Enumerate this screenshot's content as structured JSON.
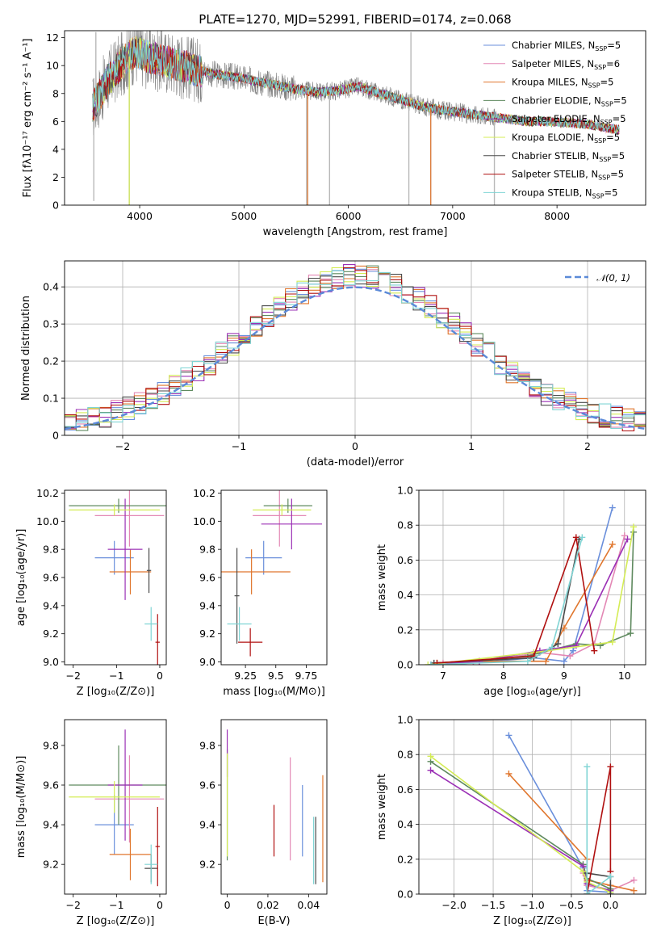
{
  "colors": {
    "Chabrier MILES": "#6a8fdb",
    "Salpeter MILES": "#e388b5",
    "Kroupa MILES": "#e0762d",
    "Chabrier ELODIE": "#5f8a5f",
    "Salpeter ELODIE": "#9b30b5",
    "Kroupa ELODIE": "#d4ec55",
    "Chabrier STELIB": "#4a4a4a",
    "Salpeter STELIB": "#b01010",
    "Kroupa STELIB": "#7fd4d4",
    "data": "#808080",
    "normal": "#5b8ad8",
    "grid": "#b0b0b0"
  },
  "chart_data": [
    {
      "id": "spectrum",
      "type": "line",
      "title": "PLATE=1270, MJD=52991, FIBERID=0174, z=0.068",
      "xlabel": "wavelength [Angstrom, rest frame]",
      "ylabel": "Flux [fλ10⁻¹⁷ erg cm⁻² s⁻¹ A⁻¹]",
      "xlim": [
        3280,
        8850
      ],
      "ylim": [
        0,
        12.5
      ],
      "xticks": [
        4000,
        5000,
        6000,
        7000,
        8000
      ],
      "yticks": [
        0,
        2,
        4,
        6,
        8,
        10,
        12
      ],
      "grid": false,
      "legend_position": "top-right",
      "legend": [
        {
          "name": "Chabrier MILES",
          "label": "Chabrier MILES, N",
          "sub": "SSP",
          "suffix": "=5"
        },
        {
          "name": "Salpeter MILES",
          "label": "Salpeter MILES, N",
          "sub": "SSP",
          "suffix": "=6"
        },
        {
          "name": "Kroupa MILES",
          "label": "Kroupa MILES, N",
          "sub": "SSP",
          "suffix": "=5"
        },
        {
          "name": "Chabrier ELODIE",
          "label": "Chabrier ELODIE, N",
          "sub": "SSP",
          "suffix": "=5"
        },
        {
          "name": "Salpeter ELODIE",
          "label": "Salpeter ELODIE, N",
          "sub": "SSP",
          "suffix": "=5"
        },
        {
          "name": "Kroupa ELODIE",
          "label": "Kroupa ELODIE, N",
          "sub": "SSP",
          "suffix": "=5"
        },
        {
          "name": "Chabrier STELIB",
          "label": "Chabrier STELIB, N",
          "sub": "SSP",
          "suffix": "=5"
        },
        {
          "name": "Salpeter STELIB",
          "label": "Salpeter STELIB, N",
          "sub": "SSP",
          "suffix": "=5"
        },
        {
          "name": "Kroupa STELIB",
          "label": "Kroupa STELIB, N",
          "sub": "SSP",
          "suffix": "=5"
        }
      ],
      "continuum": [
        [
          3550,
          7.0
        ],
        [
          3700,
          9.0
        ],
        [
          3850,
          10.3
        ],
        [
          3950,
          11.0
        ],
        [
          4100,
          10.6
        ],
        [
          4300,
          10.2
        ],
        [
          4500,
          9.8
        ],
        [
          4700,
          9.4
        ],
        [
          4900,
          9.2
        ],
        [
          5100,
          8.9
        ],
        [
          5300,
          8.6
        ],
        [
          5500,
          8.3
        ],
        [
          5700,
          8.1
        ],
        [
          5900,
          8.2
        ],
        [
          6100,
          8.5
        ],
        [
          6300,
          8.0
        ],
        [
          6500,
          7.6
        ],
        [
          6700,
          7.1
        ],
        [
          6900,
          6.8
        ],
        [
          7100,
          6.6
        ],
        [
          7300,
          6.4
        ],
        [
          7500,
          6.2
        ],
        [
          7700,
          6.0
        ],
        [
          7900,
          6.0
        ],
        [
          8100,
          5.9
        ],
        [
          8300,
          5.8
        ],
        [
          8500,
          5.5
        ],
        [
          8600,
          5.4
        ]
      ],
      "data_range": [
        3550,
        7420
      ],
      "model_range": [
        3550,
        8600
      ],
      "spikes": [
        [
          3560,
          0.3
        ],
        [
          3580,
          12.4
        ],
        [
          3900,
          0.0
        ],
        [
          4400,
          12.0
        ],
        [
          5600,
          0.0
        ],
        [
          5820,
          0.0
        ],
        [
          6580,
          0.0
        ],
        [
          6600,
          12.4
        ],
        [
          6790,
          0.0
        ],
        [
          7400,
          0.0
        ]
      ]
    },
    {
      "id": "residuals",
      "type": "histogram",
      "xlabel": "(data-model)/error",
      "ylabel": "Normed distribution",
      "xlim": [
        -2.5,
        2.5
      ],
      "ylim": [
        0,
        0.47
      ],
      "xticks": [
        -2,
        -1,
        0,
        1,
        2
      ],
      "yticks": [
        0,
        0.1,
        0.2,
        0.3,
        0.4
      ],
      "grid": true,
      "legend_position": "top-right",
      "legend": {
        "name": "normal",
        "label": "𝒩(0, 1)"
      },
      "bin_width": 0.1,
      "bin_start": -2.5
    },
    {
      "id": "age-vs-Z",
      "type": "errorbar",
      "xlabel": "Z [log₁₀(Z/Z⊙)]",
      "ylabel": "age  [log₁₀(age/yr)]",
      "xlim": [
        -2.2,
        0.15
      ],
      "ylim": [
        8.98,
        10.22
      ],
      "xticks": [
        -2,
        -1,
        0
      ],
      "yticks": [
        9.0,
        9.2,
        9.4,
        9.6,
        9.8,
        10.0,
        10.2
      ],
      "grid": false,
      "points": [
        {
          "series": "Chabrier MILES",
          "x": -1.05,
          "xerr": 0.45,
          "y": 9.74,
          "yerr": 0.12
        },
        {
          "series": "Salpeter MILES",
          "x": -0.7,
          "xerr": 0.8,
          "y": 10.04,
          "yerr": 0.22
        },
        {
          "series": "Kroupa MILES",
          "x": -0.68,
          "xerr": 0.48,
          "y": 9.64,
          "yerr": 0.16
        },
        {
          "series": "Chabrier ELODIE",
          "x": -0.95,
          "xerr": 1.15,
          "y": 10.11,
          "yerr": 0.05
        },
        {
          "series": "Salpeter ELODIE",
          "x": -0.8,
          "xerr": 0.4,
          "y": 9.8,
          "yerr": 0.36
        },
        {
          "series": "Kroupa ELODIE",
          "x": -1.05,
          "xerr": 1.05,
          "y": 10.08,
          "yerr": 0.04
        },
        {
          "series": "Chabrier STELIB",
          "x": -0.25,
          "xerr": 0.05,
          "y": 9.65,
          "yerr": 0.16
        },
        {
          "series": "Salpeter STELIB",
          "x": -0.05,
          "xerr": 0.05,
          "y": 9.14,
          "yerr": 0.2
        },
        {
          "series": "Kroupa STELIB",
          "x": -0.2,
          "xerr": 0.15,
          "y": 9.27,
          "yerr": 0.12
        }
      ]
    },
    {
      "id": "age-vs-mass",
      "type": "errorbar",
      "xlabel": "mass [log₁₀(M/M⊙)]",
      "ylabel": "",
      "xlim": [
        9.05,
        9.92
      ],
      "ylim": [
        8.98,
        10.22
      ],
      "xticks": [
        9.25,
        9.5,
        9.75
      ],
      "yticks": [
        9.0,
        9.2,
        9.4,
        9.6,
        9.8,
        10.0,
        10.2
      ],
      "grid": false,
      "points": [
        {
          "series": "Chabrier MILES",
          "x": 9.4,
          "xerr": 0.15,
          "y": 9.74,
          "yerr": 0.12
        },
        {
          "series": "Salpeter MILES",
          "x": 9.53,
          "xerr": 0.22,
          "y": 10.04,
          "yerr": 0.22
        },
        {
          "series": "Kroupa MILES",
          "x": 9.3,
          "xerr": 0.32,
          "y": 9.64,
          "yerr": 0.16
        },
        {
          "series": "Chabrier ELODIE",
          "x": 9.6,
          "xerr": 0.2,
          "y": 10.11,
          "yerr": 0.05
        },
        {
          "series": "Salpeter ELODIE",
          "x": 9.63,
          "xerr": 0.25,
          "y": 9.98,
          "yerr": 0.18
        },
        {
          "series": "Kroupa ELODIE",
          "x": 9.55,
          "xerr": 0.24,
          "y": 10.08,
          "yerr": 0.04
        },
        {
          "series": "Chabrier STELIB",
          "x": 9.18,
          "xerr": 0.02,
          "y": 9.47,
          "yerr": 0.34
        },
        {
          "series": "Salpeter STELIB",
          "x": 9.29,
          "xerr": 0.1,
          "y": 9.14,
          "yerr": 0.1
        },
        {
          "series": "Kroupa STELIB",
          "x": 9.2,
          "xerr": 0.1,
          "y": 9.27,
          "yerr": 0.12
        }
      ]
    },
    {
      "id": "massweight-vs-age",
      "type": "line",
      "xlabel": "age  [log₁₀(age/yr)]",
      "ylabel": "mass weight",
      "xlim": [
        6.6,
        10.35
      ],
      "ylim": [
        0,
        1
      ],
      "xticks": [
        7,
        8,
        9,
        10
      ],
      "yticks": [
        0.0,
        0.2,
        0.4,
        0.6,
        0.8,
        1.0
      ],
      "grid": true,
      "series": [
        {
          "name": "Chabrier MILES",
          "points": [
            [
              7.0,
              0.0
            ],
            [
              7.5,
              0.01
            ],
            [
              8.5,
              0.04
            ],
            [
              9.0,
              0.02
            ],
            [
              9.15,
              0.08
            ],
            [
              9.8,
              0.9
            ]
          ]
        },
        {
          "name": "Salpeter MILES",
          "points": [
            [
              7.0,
              0.01
            ],
            [
              7.5,
              0.01
            ],
            [
              8.6,
              0.07
            ],
            [
              9.1,
              0.05
            ],
            [
              9.5,
              0.12
            ],
            [
              10.0,
              0.74
            ]
          ]
        },
        {
          "name": "Kroupa MILES",
          "points": [
            [
              6.9,
              0.01
            ],
            [
              7.6,
              0.02
            ],
            [
              8.7,
              0.02
            ],
            [
              9.0,
              0.21
            ],
            [
              9.8,
              0.69
            ]
          ]
        },
        {
          "name": "Chabrier ELODIE",
          "points": [
            [
              6.8,
              0.0
            ],
            [
              8.4,
              0.05
            ],
            [
              9.2,
              0.12
            ],
            [
              9.6,
              0.11
            ],
            [
              10.1,
              0.18
            ],
            [
              10.15,
              0.76
            ]
          ]
        },
        {
          "name": "Salpeter ELODIE",
          "points": [
            [
              6.8,
              0.0
            ],
            [
              7.6,
              0.02
            ],
            [
              8.6,
              0.08
            ],
            [
              9.2,
              0.11
            ],
            [
              10.05,
              0.72
            ]
          ]
        },
        {
          "name": "Kroupa ELODIE",
          "points": [
            [
              6.75,
              0.0
            ],
            [
              8.5,
              0.07
            ],
            [
              9.8,
              0.13
            ],
            [
              10.15,
              0.79
            ]
          ]
        },
        {
          "name": "Chabrier STELIB",
          "points": [
            [
              6.85,
              0.01
            ],
            [
              8.5,
              0.04
            ],
            [
              8.9,
              0.12
            ],
            [
              9.25,
              0.72
            ]
          ]
        },
        {
          "name": "Salpeter STELIB",
          "points": [
            [
              6.9,
              0.01
            ],
            [
              8.5,
              0.05
            ],
            [
              9.2,
              0.73
            ],
            [
              9.5,
              0.08
            ]
          ]
        },
        {
          "name": "Kroupa STELIB",
          "points": [
            [
              6.8,
              0.0
            ],
            [
              8.4,
              0.02
            ],
            [
              8.8,
              0.1
            ],
            [
              9.3,
              0.73
            ]
          ]
        }
      ]
    },
    {
      "id": "mass-vs-Z",
      "type": "errorbar",
      "xlabel": "Z [log₁₀(Z/Z⊙)]",
      "ylabel": "mass [log₁₀(M/M⊙)]",
      "xlim": [
        -2.2,
        0.15
      ],
      "ylim": [
        9.05,
        9.93
      ],
      "xticks": [
        -2,
        -1,
        0
      ],
      "yticks": [
        9.2,
        9.4,
        9.6,
        9.8
      ],
      "grid": false,
      "points": [
        {
          "series": "Chabrier MILES",
          "x": -1.05,
          "xerr": 0.45,
          "y": 9.4,
          "yerr": 0.15
        },
        {
          "series": "Salpeter MILES",
          "x": -0.7,
          "xerr": 0.8,
          "y": 9.53,
          "yerr": 0.22
        },
        {
          "series": "Kroupa MILES",
          "x": -0.68,
          "xerr": 0.48,
          "y": 9.25,
          "yerr": 0.13
        },
        {
          "series": "Chabrier ELODIE",
          "x": -0.95,
          "xerr": 1.15,
          "y": 9.6,
          "yerr": 0.2
        },
        {
          "series": "Salpeter ELODIE",
          "x": -0.8,
          "xerr": 0.4,
          "y": 9.6,
          "yerr": 0.28
        },
        {
          "series": "Kroupa ELODIE",
          "x": -1.05,
          "xerr": 1.05,
          "y": 9.54,
          "yerr": 0.08
        },
        {
          "series": "Chabrier STELIB",
          "x": -0.2,
          "xerr": 0.15,
          "y": 9.18,
          "yerr": 0.07
        },
        {
          "series": "Salpeter STELIB",
          "x": -0.05,
          "xerr": 0.05,
          "y": 9.29,
          "yerr": 0.2
        },
        {
          "series": "Kroupa STELIB",
          "x": -0.2,
          "xerr": 0.15,
          "y": 9.2,
          "yerr": 0.1
        }
      ]
    },
    {
      "id": "mass-vs-EBV",
      "type": "errorbar",
      "xlabel": "E(B-V)",
      "ylabel": "",
      "xlim": [
        -0.003,
        0.049
      ],
      "ylim": [
        9.05,
        9.93
      ],
      "xticks": [
        0.0,
        0.02,
        0.04
      ],
      "yticks": [
        9.2,
        9.4,
        9.6,
        9.8
      ],
      "grid": false,
      "points": [
        {
          "series": "Chabrier MILES",
          "x": 0.037,
          "xerr": 0,
          "y": 9.42,
          "yerr": 0.18
        },
        {
          "series": "Salpeter MILES",
          "x": 0.031,
          "xerr": 0,
          "y": 9.48,
          "yerr": 0.26
        },
        {
          "series": "Kroupa MILES",
          "x": 0.047,
          "xerr": 0,
          "y": 9.38,
          "yerr": 0.27
        },
        {
          "series": "Chabrier ELODIE",
          "x": 0.0,
          "xerr": 0,
          "y": 9.5,
          "yerr": 0.28
        },
        {
          "series": "Salpeter ELODIE",
          "x": 0.0,
          "xerr": 0,
          "y": 9.76,
          "yerr": 0.12
        },
        {
          "series": "Kroupa ELODIE",
          "x": 0.0,
          "xerr": 0,
          "y": 9.5,
          "yerr": 0.26
        },
        {
          "series": "Chabrier STELIB",
          "x": 0.0435,
          "xerr": 0,
          "y": 9.27,
          "yerr": 0.17
        },
        {
          "series": "Salpeter STELIB",
          "x": 0.023,
          "xerr": 0,
          "y": 9.37,
          "yerr": 0.13
        },
        {
          "series": "Kroupa STELIB",
          "x": 0.0425,
          "xerr": 0,
          "y": 9.27,
          "yerr": 0.17
        }
      ]
    },
    {
      "id": "massweight-vs-Z",
      "type": "line",
      "xlabel": "Z [log₁₀(Z/Z⊙)]",
      "ylabel": "mass weight",
      "xlim": [
        -2.45,
        0.45
      ],
      "ylim": [
        0,
        1
      ],
      "xticks": [
        -2.0,
        -1.5,
        -1.0,
        -0.5,
        0.0
      ],
      "yticks": [
        0.0,
        0.2,
        0.4,
        0.6,
        0.8,
        1.0
      ],
      "grid": true,
      "series": [
        {
          "name": "Chabrier MILES",
          "points": [
            [
              -1.3,
              0.91
            ],
            [
              -0.35,
              0.15
            ],
            [
              -0.3,
              0.02
            ],
            [
              0.0,
              0.01
            ]
          ]
        },
        {
          "name": "Salpeter MILES",
          "points": [
            [
              -0.35,
              0.12
            ],
            [
              -0.3,
              0.05
            ],
            [
              0.0,
              0.02
            ],
            [
              0.3,
              0.08
            ]
          ]
        },
        {
          "name": "Kroupa MILES",
          "points": [
            [
              -1.3,
              0.69
            ],
            [
              -0.3,
              0.2
            ],
            [
              -0.3,
              0.08
            ],
            [
              0.0,
              0.05
            ],
            [
              0.3,
              0.02
            ]
          ]
        },
        {
          "name": "Chabrier ELODIE",
          "points": [
            [
              -2.3,
              0.76
            ],
            [
              -0.35,
              0.17
            ],
            [
              -0.3,
              0.09
            ],
            [
              0.0,
              0.03
            ]
          ]
        },
        {
          "name": "Salpeter ELODIE",
          "points": [
            [
              -2.3,
              0.71
            ],
            [
              -0.35,
              0.16
            ],
            [
              -0.3,
              0.06
            ],
            [
              0.0,
              0.02
            ]
          ]
        },
        {
          "name": "Kroupa ELODIE",
          "points": [
            [
              -2.3,
              0.79
            ],
            [
              -0.35,
              0.13
            ],
            [
              -0.3,
              0.07
            ],
            [
              0.0,
              0.01
            ]
          ]
        },
        {
          "name": "Chabrier STELIB",
          "points": [
            [
              -0.3,
              0.12
            ],
            [
              0.0,
              0.1
            ],
            [
              0.0,
              0.0
            ]
          ]
        },
        {
          "name": "Salpeter STELIB",
          "points": [
            [
              -0.3,
              0.0
            ],
            [
              0.0,
              0.73
            ],
            [
              0.0,
              0.13
            ]
          ]
        },
        {
          "name": "Kroupa STELIB",
          "points": [
            [
              -0.3,
              0.73
            ],
            [
              -0.3,
              0.0
            ],
            [
              0.0,
              0.1
            ]
          ]
        }
      ]
    }
  ]
}
